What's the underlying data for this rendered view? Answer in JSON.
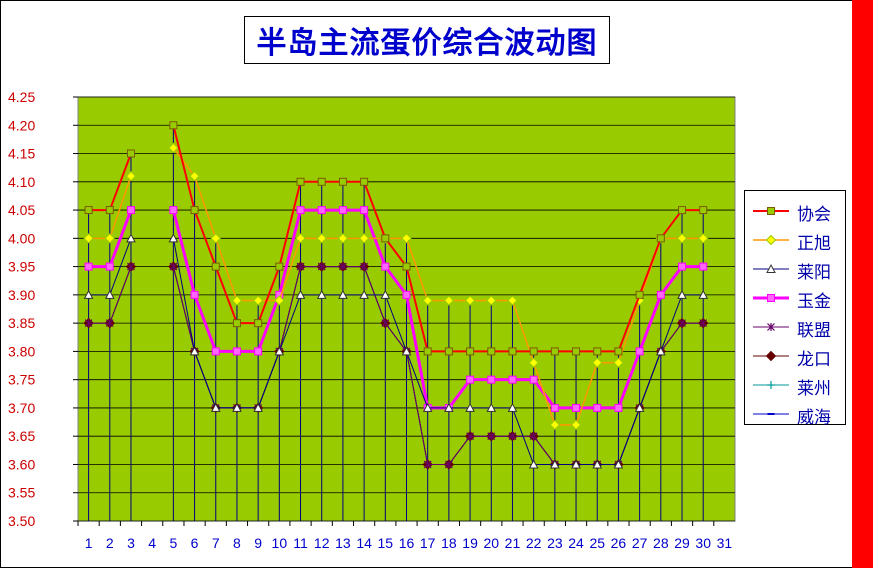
{
  "title": "半岛主流蛋价综合波动图",
  "colors": {
    "plot_bg": "#99cc00",
    "accent_bar": "#ff0000",
    "tick_y": "#cc0000",
    "tick_x": "#0000cc"
  },
  "chart_data": {
    "type": "line",
    "title": "半岛主流蛋价综合波动图",
    "xlabel": "",
    "ylabel": "",
    "x": [
      1,
      2,
      3,
      4,
      5,
      6,
      7,
      8,
      9,
      10,
      11,
      12,
      13,
      14,
      15,
      16,
      17,
      18,
      19,
      20,
      21,
      22,
      23,
      24,
      25,
      26,
      27,
      28,
      29,
      30,
      31
    ],
    "x_tick_labels": [
      "1",
      "2",
      "3",
      "4",
      "5",
      "6",
      "7",
      "8",
      "9",
      "10",
      "11",
      "12",
      "13",
      "14",
      "15",
      "16",
      "17",
      "18",
      "19",
      "20",
      "21",
      "22",
      "23",
      "24",
      "25",
      "26",
      "27",
      "28",
      "29",
      "30",
      "31"
    ],
    "ylim": [
      3.5,
      4.25
    ],
    "y_ticks": [
      "3.50",
      "3.55",
      "3.60",
      "3.65",
      "3.70",
      "3.75",
      "3.80",
      "3.85",
      "3.90",
      "3.95",
      "4.00",
      "4.05",
      "4.10",
      "4.15",
      "4.20",
      "4.25"
    ],
    "grid": true,
    "legend_position": "right",
    "series": [
      {
        "name": "协会",
        "color": "#ff0000",
        "marker": "square",
        "marker_fill": "#99cc00",
        "marker_stroke": "#7a5a00",
        "width": 2,
        "values": [
          4.05,
          4.05,
          4.15,
          null,
          4.2,
          4.05,
          3.95,
          3.85,
          3.85,
          3.95,
          4.1,
          4.1,
          4.1,
          4.1,
          4.0,
          3.95,
          3.8,
          3.8,
          3.8,
          3.8,
          3.8,
          3.8,
          3.8,
          3.8,
          3.8,
          3.8,
          3.9,
          4.0,
          4.05,
          4.05,
          null
        ]
      },
      {
        "name": "正旭",
        "color": "#ff9900",
        "marker": "diamond",
        "marker_fill": "#ffff00",
        "marker_stroke": "#99cc00",
        "width": 1.5,
        "values": [
          4.0,
          4.0,
          4.11,
          null,
          4.16,
          4.11,
          4.0,
          3.89,
          3.89,
          3.89,
          4.0,
          4.0,
          4.0,
          4.0,
          4.0,
          4.0,
          3.89,
          3.89,
          3.89,
          3.89,
          3.89,
          3.78,
          3.67,
          3.67,
          3.78,
          3.78,
          3.89,
          4.0,
          4.0,
          4.0,
          null
        ]
      },
      {
        "name": "莱阳",
        "color": "#000080",
        "marker": "triangle",
        "marker_fill": "#ffffff",
        "marker_stroke": "#333333",
        "width": 1,
        "values": [
          3.9,
          3.9,
          4.0,
          null,
          4.0,
          3.8,
          3.7,
          3.7,
          3.7,
          3.8,
          3.9,
          3.9,
          3.9,
          3.9,
          3.9,
          3.8,
          3.7,
          3.7,
          3.7,
          3.7,
          3.7,
          3.6,
          3.6,
          3.6,
          3.6,
          3.6,
          3.7,
          3.8,
          3.9,
          3.9,
          null
        ]
      },
      {
        "name": "玉金",
        "color": "#ff00ff",
        "marker": "square",
        "marker_fill": "#ff66ff",
        "marker_stroke": "#ff00ff",
        "width": 3,
        "values": [
          3.95,
          3.95,
          4.05,
          null,
          4.05,
          3.9,
          3.8,
          3.8,
          3.8,
          3.9,
          4.05,
          4.05,
          4.05,
          4.05,
          3.95,
          3.9,
          3.7,
          3.7,
          3.75,
          3.75,
          3.75,
          3.75,
          3.7,
          3.7,
          3.7,
          3.7,
          3.8,
          3.9,
          3.95,
          3.95,
          null
        ]
      },
      {
        "name": "联盟",
        "color": "#660066",
        "marker": "star",
        "marker_fill": "#660066",
        "marker_stroke": "#660066",
        "width": 1,
        "values": [
          3.85,
          3.85,
          3.95,
          null,
          3.95,
          3.8,
          3.7,
          3.7,
          3.7,
          3.8,
          3.95,
          3.95,
          3.95,
          3.95,
          3.85,
          3.8,
          3.6,
          3.6,
          3.65,
          3.65,
          3.65,
          3.65,
          3.6,
          3.6,
          3.6,
          3.6,
          3.7,
          3.8,
          3.85,
          3.85,
          null
        ]
      },
      {
        "name": "龙口",
        "color": "#660000",
        "marker": "diamond",
        "marker_fill": "#660000",
        "marker_stroke": "#660000",
        "width": 1,
        "values": [
          3.85,
          3.85,
          3.95,
          null,
          3.95,
          3.8,
          3.7,
          3.7,
          3.7,
          3.8,
          3.95,
          3.95,
          3.95,
          3.95,
          3.85,
          3.8,
          3.6,
          3.6,
          3.65,
          3.65,
          3.65,
          3.65,
          3.6,
          3.6,
          3.6,
          3.6,
          3.7,
          3.8,
          3.85,
          3.85,
          null
        ]
      },
      {
        "name": "莱州",
        "color": "#009999",
        "marker": "plus",
        "marker_fill": "#009999",
        "marker_stroke": "#009999",
        "width": 1,
        "values": [
          3.85,
          3.85,
          3.95,
          null,
          3.95,
          3.8,
          3.7,
          3.7,
          3.7,
          3.8,
          3.95,
          3.95,
          3.95,
          3.95,
          3.85,
          3.8,
          3.6,
          3.6,
          3.65,
          3.65,
          3.65,
          3.65,
          3.6,
          3.6,
          3.6,
          3.6,
          3.7,
          3.8,
          3.85,
          3.85,
          null
        ]
      },
      {
        "name": "威海",
        "color": "#0000cc",
        "marker": "dash",
        "marker_fill": "#0000cc",
        "marker_stroke": "#0000cc",
        "width": 1,
        "values": [
          3.85,
          3.85,
          3.95,
          null,
          3.95,
          3.8,
          3.7,
          3.7,
          3.7,
          3.8,
          3.95,
          3.95,
          3.95,
          3.95,
          3.85,
          3.8,
          3.6,
          3.6,
          3.65,
          3.65,
          3.65,
          3.65,
          3.6,
          3.6,
          3.6,
          3.6,
          3.7,
          3.8,
          3.85,
          3.85,
          null
        ]
      }
    ]
  }
}
